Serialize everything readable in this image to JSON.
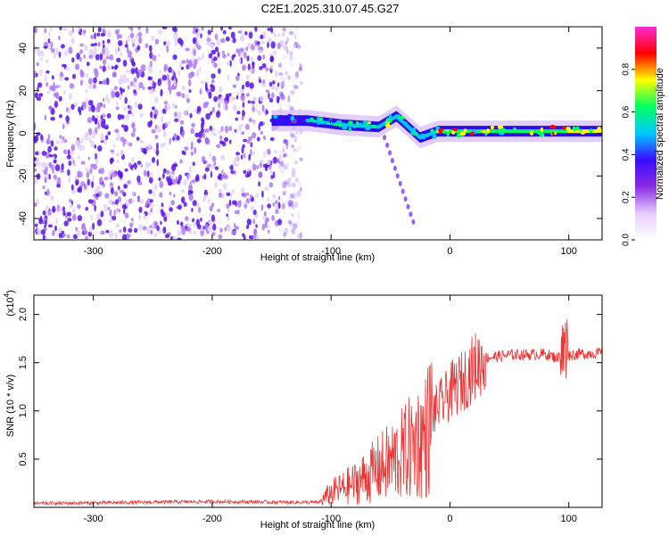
{
  "title": "C2E1.2025.310.07.45.G27",
  "chart_data": [
    {
      "type": "heatmap",
      "xlabel": "Height of straight line (km)",
      "ylabel": "Frequency (Hz)",
      "xlim": [
        -350,
        128
      ],
      "ylim": [
        -50,
        50
      ],
      "xticks": [
        -300,
        -200,
        -100,
        0,
        100
      ],
      "yticks": [
        -40,
        -20,
        0,
        20,
        40
      ],
      "noise_region_x": [
        -350,
        -125
      ],
      "trace": [
        {
          "x": -150,
          "y": 6,
          "amp": 0.35
        },
        {
          "x": -120,
          "y": 6,
          "amp": 0.45
        },
        {
          "x": -90,
          "y": 4,
          "amp": 0.5
        },
        {
          "x": -60,
          "y": 3,
          "amp": 0.55
        },
        {
          "x": -45,
          "y": 8,
          "amp": 0.5
        },
        {
          "x": -35,
          "y": 3,
          "amp": 0.5
        },
        {
          "x": -25,
          "y": -2,
          "amp": 0.45
        },
        {
          "x": -10,
          "y": 1,
          "amp": 0.75
        },
        {
          "x": 0,
          "y": 1,
          "amp": 0.6
        },
        {
          "x": 50,
          "y": 1,
          "amp": 0.6
        },
        {
          "x": 100,
          "y": 1,
          "amp": 0.7
        },
        {
          "x": 128,
          "y": 1,
          "amp": 0.7
        }
      ],
      "colorbar": {
        "label": "Normalized spectral amplitude",
        "ticks": [
          "0.0",
          "0.2",
          "0.4",
          "0.6",
          "0.8"
        ],
        "range": [
          0,
          1
        ],
        "colors": [
          "#ffffff",
          "#e6ccff",
          "#8a2be2",
          "#3a0cff",
          "#00c8ff",
          "#00ff60",
          "#ffff00",
          "#ff0000",
          "#ff2ad4"
        ]
      }
    },
    {
      "type": "line",
      "xlabel": "Height of straight line (km)",
      "ylabel": "SNR (10 * v/v)",
      "scale_note": "(x10",
      "scale_exp": "4",
      "ylim": [
        0,
        22000
      ],
      "xlim": [
        -350,
        128
      ],
      "xticks": [
        -300,
        -200,
        -100,
        0,
        100
      ],
      "yticks": [
        {
          "v": 5000,
          "label": "0.5"
        },
        {
          "v": 10000,
          "label": "1.0"
        },
        {
          "v": 15000,
          "label": "1.5"
        },
        {
          "v": 20000,
          "label": "2.0"
        }
      ],
      "line_color": "#ee3333",
      "series": [
        {
          "x": [
            -350,
            -200,
            -110,
            -100,
            -80,
            -60,
            -40,
            -30,
            -20,
            -15,
            -10,
            -5,
            0,
            10,
            20,
            30,
            50,
            80,
            90,
            97,
            100,
            110,
            128
          ],
          "values": [
            400,
            600,
            500,
            1500,
            2500,
            4000,
            5500,
            6500,
            7500,
            9500,
            10500,
            11000,
            12000,
            13000,
            14500,
            15500,
            15800,
            15900,
            15500,
            16000,
            15800,
            15900,
            16000
          ]
        }
      ]
    }
  ]
}
